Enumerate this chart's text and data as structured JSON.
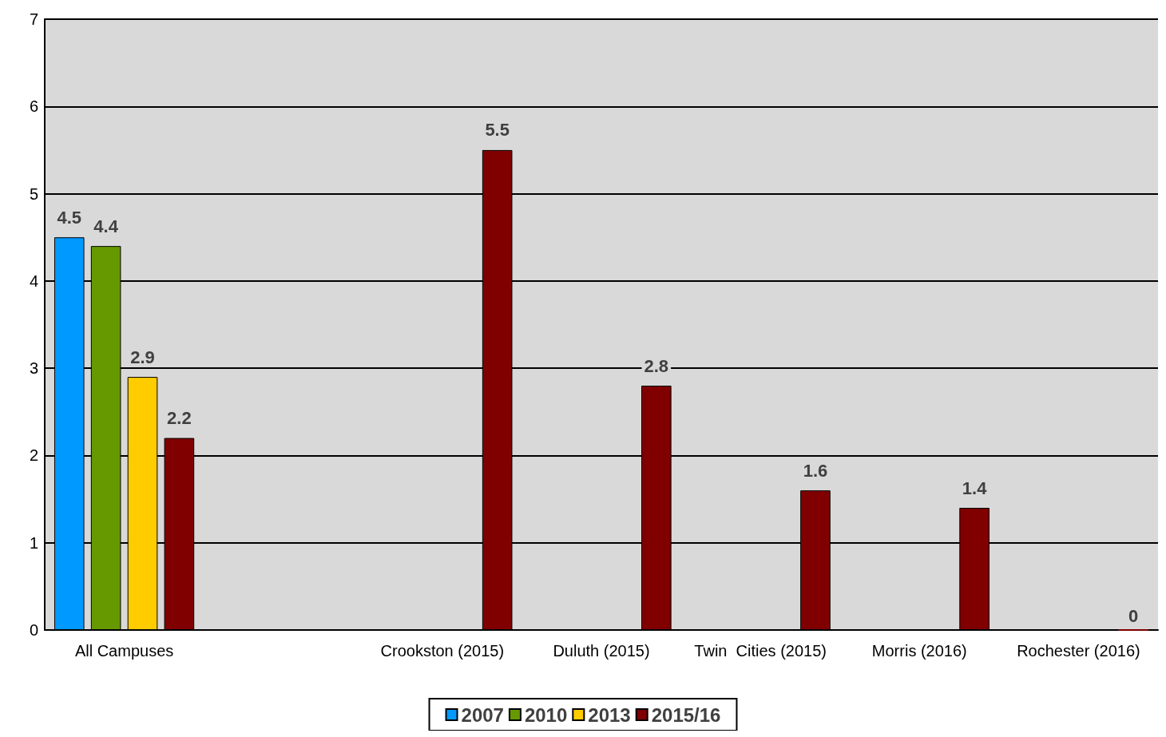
{
  "chart_data": {
    "type": "bar",
    "categories": [
      "All Campuses",
      null,
      "Crookston (2015)",
      "Duluth (2015)",
      "Twin  Cities (2015)",
      "Morris (2016)",
      "Rochester (2016)"
    ],
    "series": [
      {
        "name": "2007",
        "color": "#0099ff",
        "values": [
          4.5,
          null,
          null,
          null,
          null,
          null,
          null
        ]
      },
      {
        "name": "2010",
        "color": "#669900",
        "values": [
          4.4,
          null,
          null,
          null,
          null,
          null,
          null
        ]
      },
      {
        "name": "2013",
        "color": "#ffcc00",
        "values": [
          2.9,
          null,
          null,
          null,
          null,
          null,
          null
        ]
      },
      {
        "name": "2015/16",
        "color": "#800000",
        "values": [
          2.2,
          null,
          5.5,
          2.8,
          1.6,
          1.4,
          0
        ]
      }
    ],
    "ylim": [
      0,
      7
    ],
    "yticks": [
      0,
      1,
      2,
      3,
      4,
      5,
      6,
      7
    ],
    "grid": "y",
    "legend": "bottom",
    "data_labels": true
  }
}
